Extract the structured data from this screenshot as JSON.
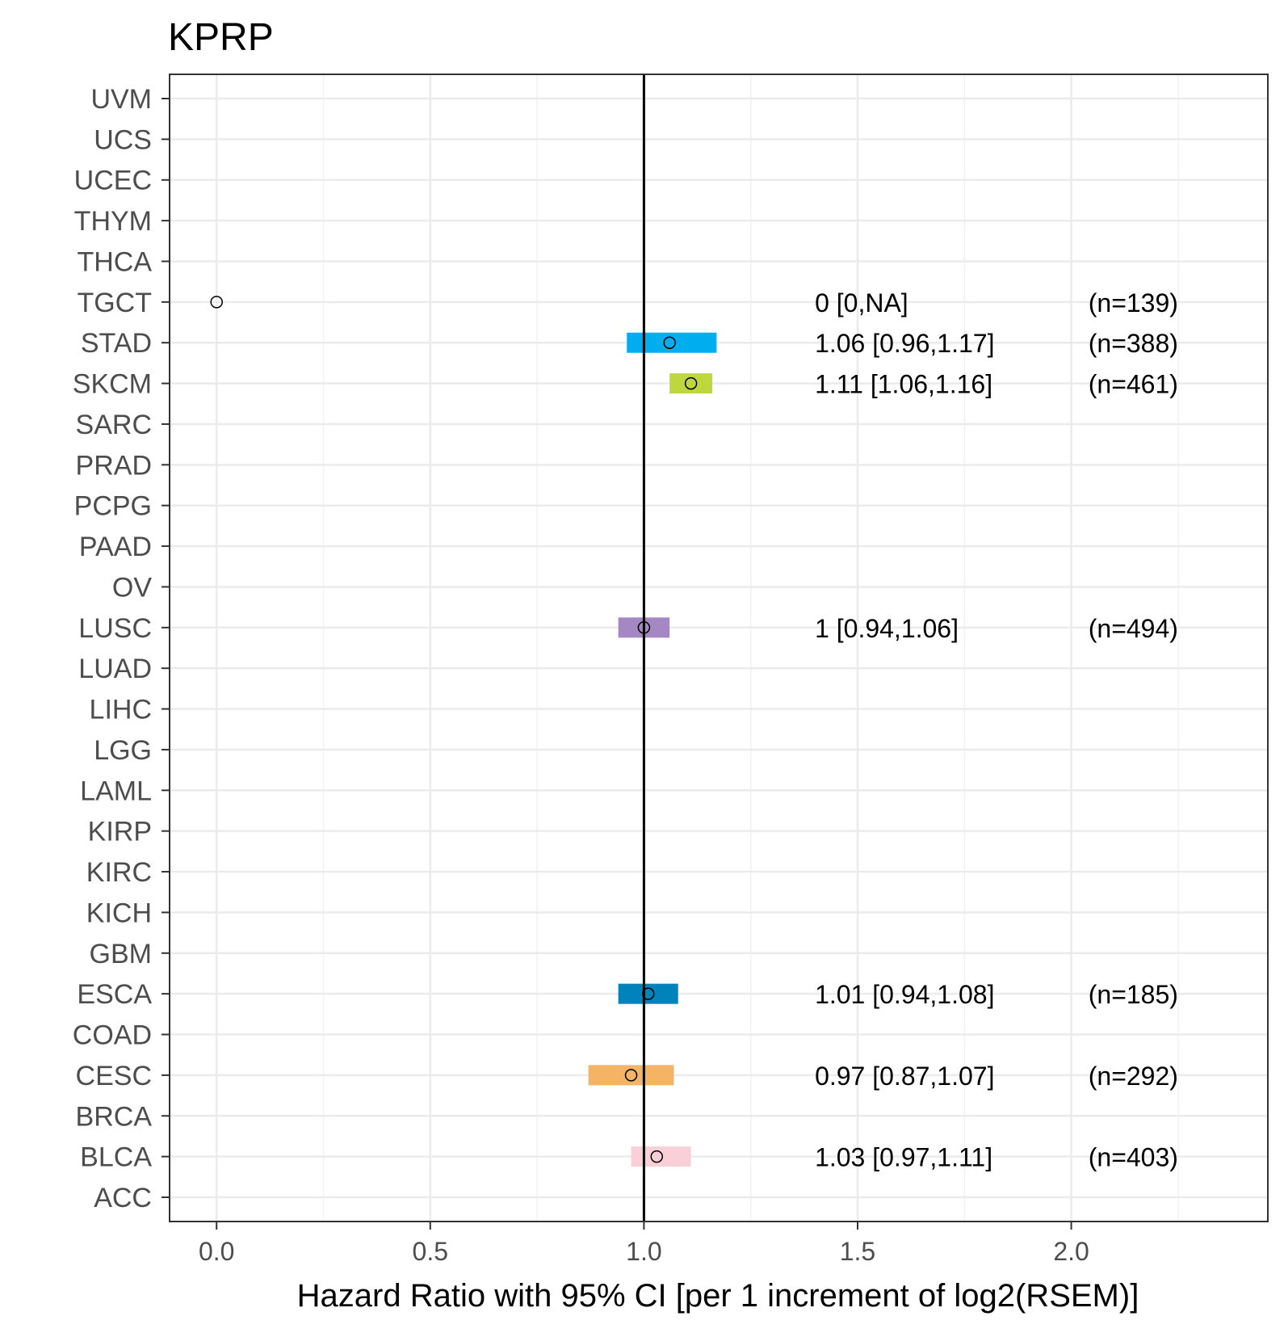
{
  "chart_data": {
    "type": "forest",
    "title": "KPRP",
    "xlabel": "Hazard Ratio with 95% CI [per 1 increment of log2(RSEM)]",
    "ylabel": "",
    "xlim": [
      -0.11,
      2.46
    ],
    "x_ticks": [
      0.0,
      0.5,
      1.0,
      1.5,
      2.0
    ],
    "x_tick_labels": [
      "0.0",
      "0.5",
      "1.0",
      "1.5",
      "2.0"
    ],
    "x_minor_ticks": [
      0.25,
      0.75,
      1.25,
      1.75,
      2.25
    ],
    "reference_line": 1.0,
    "categories": [
      "UVM",
      "UCS",
      "UCEC",
      "THYM",
      "THCA",
      "TGCT",
      "STAD",
      "SKCM",
      "SARC",
      "PRAD",
      "PCPG",
      "PAAD",
      "OV",
      "LUSC",
      "LUAD",
      "LIHC",
      "LGG",
      "LAML",
      "KIRP",
      "KIRC",
      "KICH",
      "GBM",
      "ESCA",
      "COAD",
      "CESC",
      "BRCA",
      "BLCA",
      "ACC"
    ],
    "estimates": [
      {
        "category": "TGCT",
        "hr": 0.0,
        "lower": 0.0,
        "upper": null,
        "label": "0 [0,NA]",
        "n": "(n=139)",
        "color": null
      },
      {
        "category": "STAD",
        "hr": 1.06,
        "lower": 0.96,
        "upper": 1.17,
        "label": "1.06 [0.96,1.17]",
        "n": "(n=388)",
        "color": "#00AEEF"
      },
      {
        "category": "SKCM",
        "hr": 1.11,
        "lower": 1.06,
        "upper": 1.16,
        "label": "1.11 [1.06,1.16]",
        "n": "(n=461)",
        "color": "#BFD73F"
      },
      {
        "category": "LUSC",
        "hr": 1.0,
        "lower": 0.94,
        "upper": 1.06,
        "label": "1 [0.94,1.06]",
        "n": "(n=494)",
        "color": "#A487C3"
      },
      {
        "category": "ESCA",
        "hr": 1.01,
        "lower": 0.94,
        "upper": 1.08,
        "label": "1.01 [0.94,1.08]",
        "n": "(n=185)",
        "color": "#0082BA"
      },
      {
        "category": "CESC",
        "hr": 0.97,
        "lower": 0.87,
        "upper": 1.07,
        "label": "0.97 [0.87,1.07]",
        "n": "(n=292)",
        "color": "#F4B466"
      },
      {
        "category": "BLCA",
        "hr": 1.03,
        "lower": 0.97,
        "upper": 1.11,
        "label": "1.03 [0.97,1.11]",
        "n": "(n=403)",
        "color": "#F9D0D8"
      }
    ],
    "label_column_x": 1.4,
    "n_column_x": 2.04,
    "grid": true,
    "legend": "none"
  }
}
